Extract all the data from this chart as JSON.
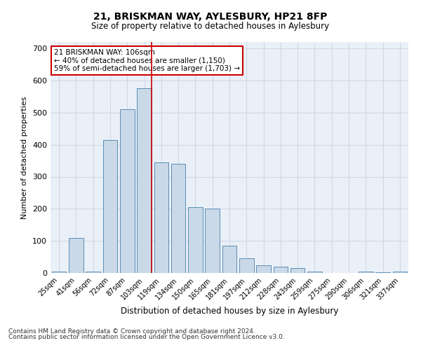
{
  "title1": "21, BRISKMAN WAY, AYLESBURY, HP21 8FP",
  "title2": "Size of property relative to detached houses in Aylesbury",
  "xlabel": "Distribution of detached houses by size in Aylesbury",
  "ylabel": "Number of detached properties",
  "bar_labels": [
    "25sqm",
    "41sqm",
    "56sqm",
    "72sqm",
    "87sqm",
    "103sqm",
    "119sqm",
    "134sqm",
    "150sqm",
    "165sqm",
    "181sqm",
    "197sqm",
    "212sqm",
    "228sqm",
    "243sqm",
    "259sqm",
    "275sqm",
    "290sqm",
    "306sqm",
    "321sqm",
    "337sqm"
  ],
  "bar_values": [
    5,
    110,
    5,
    415,
    510,
    575,
    345,
    340,
    205,
    200,
    85,
    45,
    25,
    20,
    15,
    5,
    0,
    0,
    5,
    2,
    5
  ],
  "bar_color": "#c9d9e8",
  "bar_edge_color": "#5a8db5",
  "grid_color": "#d0d8e8",
  "background_color": "#eaf0f8",
  "annotation_line1": "21 BRISKMAN WAY: 106sqm",
  "annotation_line2": "← 40% of detached houses are smaller (1,150)",
  "annotation_line3": "59% of semi-detached houses are larger (1,703) →",
  "annotation_box_color": "#ffffff",
  "annotation_box_edge": "#cc0000",
  "redline_x": 5.42,
  "ylim": [
    0,
    720
  ],
  "yticks": [
    0,
    100,
    200,
    300,
    400,
    500,
    600,
    700
  ],
  "footnote1": "Contains HM Land Registry data © Crown copyright and database right 2024.",
  "footnote2": "Contains public sector information licensed under the Open Government Licence v3.0."
}
